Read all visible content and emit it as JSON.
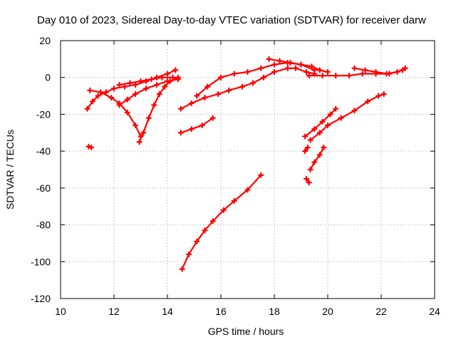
{
  "chart_data": {
    "type": "scatter",
    "title": "Day 010 of 2023, Sidereal Day-to-day VTEC variation (SDTVAR) for receiver darw",
    "xlabel": "GPS time / hours",
    "ylabel": "SDTVAR / TECUs",
    "xlim": [
      10,
      24
    ],
    "ylim": [
      -120,
      20
    ],
    "xticks": [
      10,
      12,
      14,
      16,
      18,
      20,
      22,
      24
    ],
    "yticks": [
      -120,
      -100,
      -80,
      -60,
      -40,
      -20,
      0,
      20
    ],
    "grid": true,
    "legend": "none",
    "color": "#ff0000",
    "series": [
      {
        "points": [
          [
            11.0,
            -17
          ],
          [
            11.2,
            -13
          ],
          [
            11.4,
            -10
          ],
          [
            11.7,
            -8
          ],
          [
            12.0,
            -6
          ],
          [
            12.4,
            -5
          ],
          [
            12.8,
            -4
          ],
          [
            13.2,
            -2
          ],
          [
            13.6,
            0
          ],
          [
            14.0,
            2
          ],
          [
            14.3,
            4
          ]
        ]
      },
      {
        "points": [
          [
            11.1,
            -7
          ],
          [
            11.5,
            -8
          ],
          [
            11.9,
            -11
          ],
          [
            12.2,
            -14
          ],
          [
            12.5,
            -19
          ],
          [
            12.8,
            -26
          ],
          [
            13.0,
            -32
          ]
        ]
      },
      {
        "points": [
          [
            12.2,
            -4
          ],
          [
            12.6,
            -3
          ],
          [
            13.0,
            -2
          ],
          [
            13.4,
            -1
          ],
          [
            13.8,
            0
          ],
          [
            14.2,
            0
          ]
        ]
      },
      {
        "points": [
          [
            12.2,
            -15
          ],
          [
            12.5,
            -12
          ],
          [
            12.8,
            -9
          ],
          [
            13.2,
            -6
          ],
          [
            13.6,
            -4
          ],
          [
            14.0,
            -2
          ],
          [
            14.4,
            -1
          ]
        ]
      },
      {
        "points": [
          [
            12.95,
            -35
          ],
          [
            13.1,
            -30
          ],
          [
            13.3,
            -22
          ],
          [
            13.5,
            -15
          ],
          [
            13.7,
            -9
          ],
          [
            13.9,
            -5
          ],
          [
            14.1,
            -2
          ],
          [
            14.4,
            0
          ]
        ]
      },
      {
        "points": [
          [
            11.05,
            -37.5
          ],
          [
            11.15,
            -38
          ]
        ]
      },
      {
        "points": [
          [
            14.5,
            -17
          ],
          [
            14.9,
            -14
          ],
          [
            15.4,
            -11
          ],
          [
            15.9,
            -9
          ],
          [
            16.3,
            -7
          ],
          [
            16.8,
            -5
          ],
          [
            17.2,
            -3
          ],
          [
            17.6,
            0
          ],
          [
            18.0,
            3
          ],
          [
            18.5,
            5
          ],
          [
            18.8,
            5
          ],
          [
            19.2,
            3
          ],
          [
            19.5,
            2
          ]
        ]
      },
      {
        "points": [
          [
            14.5,
            -30
          ],
          [
            14.9,
            -28
          ],
          [
            15.3,
            -26
          ],
          [
            15.7,
            -22
          ]
        ]
      },
      {
        "points": [
          [
            14.55,
            -104
          ],
          [
            14.8,
            -96
          ],
          [
            15.1,
            -89
          ],
          [
            15.4,
            -83
          ],
          [
            15.7,
            -78
          ],
          [
            16.1,
            -72
          ],
          [
            16.5,
            -67
          ],
          [
            17.0,
            -61
          ],
          [
            17.5,
            -53
          ]
        ]
      },
      {
        "points": [
          [
            15.1,
            -10
          ],
          [
            15.5,
            -5
          ],
          [
            16.0,
            0
          ],
          [
            16.5,
            2
          ],
          [
            17.0,
            3
          ],
          [
            17.5,
            5
          ],
          [
            18.0,
            7
          ],
          [
            18.5,
            8
          ],
          [
            19.0,
            7
          ],
          [
            19.5,
            4
          ]
        ]
      },
      {
        "points": [
          [
            17.8,
            10
          ],
          [
            18.2,
            9
          ],
          [
            18.6,
            8
          ],
          [
            19.0,
            7
          ],
          [
            19.4,
            6
          ],
          [
            19.7,
            4
          ],
          [
            20.0,
            3
          ]
        ]
      },
      {
        "points": [
          [
            19.3,
            1
          ],
          [
            19.8,
            1
          ],
          [
            20.3,
            1
          ],
          [
            20.8,
            1
          ],
          [
            21.3,
            2
          ],
          [
            21.8,
            2
          ],
          [
            22.3,
            2
          ],
          [
            22.8,
            4
          ]
        ]
      },
      {
        "points": [
          [
            21.0,
            5
          ],
          [
            21.4,
            4
          ],
          [
            21.8,
            3
          ],
          [
            22.2,
            2
          ],
          [
            22.6,
            3
          ],
          [
            22.9,
            5
          ]
        ]
      },
      {
        "points": [
          [
            19.15,
            -32
          ],
          [
            19.5,
            -28
          ],
          [
            19.8,
            -24
          ],
          [
            20.1,
            -20
          ],
          [
            20.3,
            -17
          ]
        ]
      },
      {
        "points": [
          [
            19.15,
            -40
          ],
          [
            19.25,
            -38
          ]
        ]
      },
      {
        "points": [
          [
            19.2,
            -55
          ],
          [
            19.3,
            -57
          ]
        ]
      },
      {
        "points": [
          [
            19.35,
            -50
          ],
          [
            19.5,
            -46
          ],
          [
            19.7,
            -42
          ],
          [
            19.85,
            -38
          ]
        ]
      },
      {
        "points": [
          [
            19.35,
            -34
          ],
          [
            19.7,
            -30
          ],
          [
            20.0,
            -26
          ],
          [
            20.5,
            -22
          ],
          [
            21.0,
            -18
          ],
          [
            21.5,
            -13
          ],
          [
            21.9,
            -10
          ],
          [
            22.1,
            -9
          ]
        ]
      }
    ]
  }
}
